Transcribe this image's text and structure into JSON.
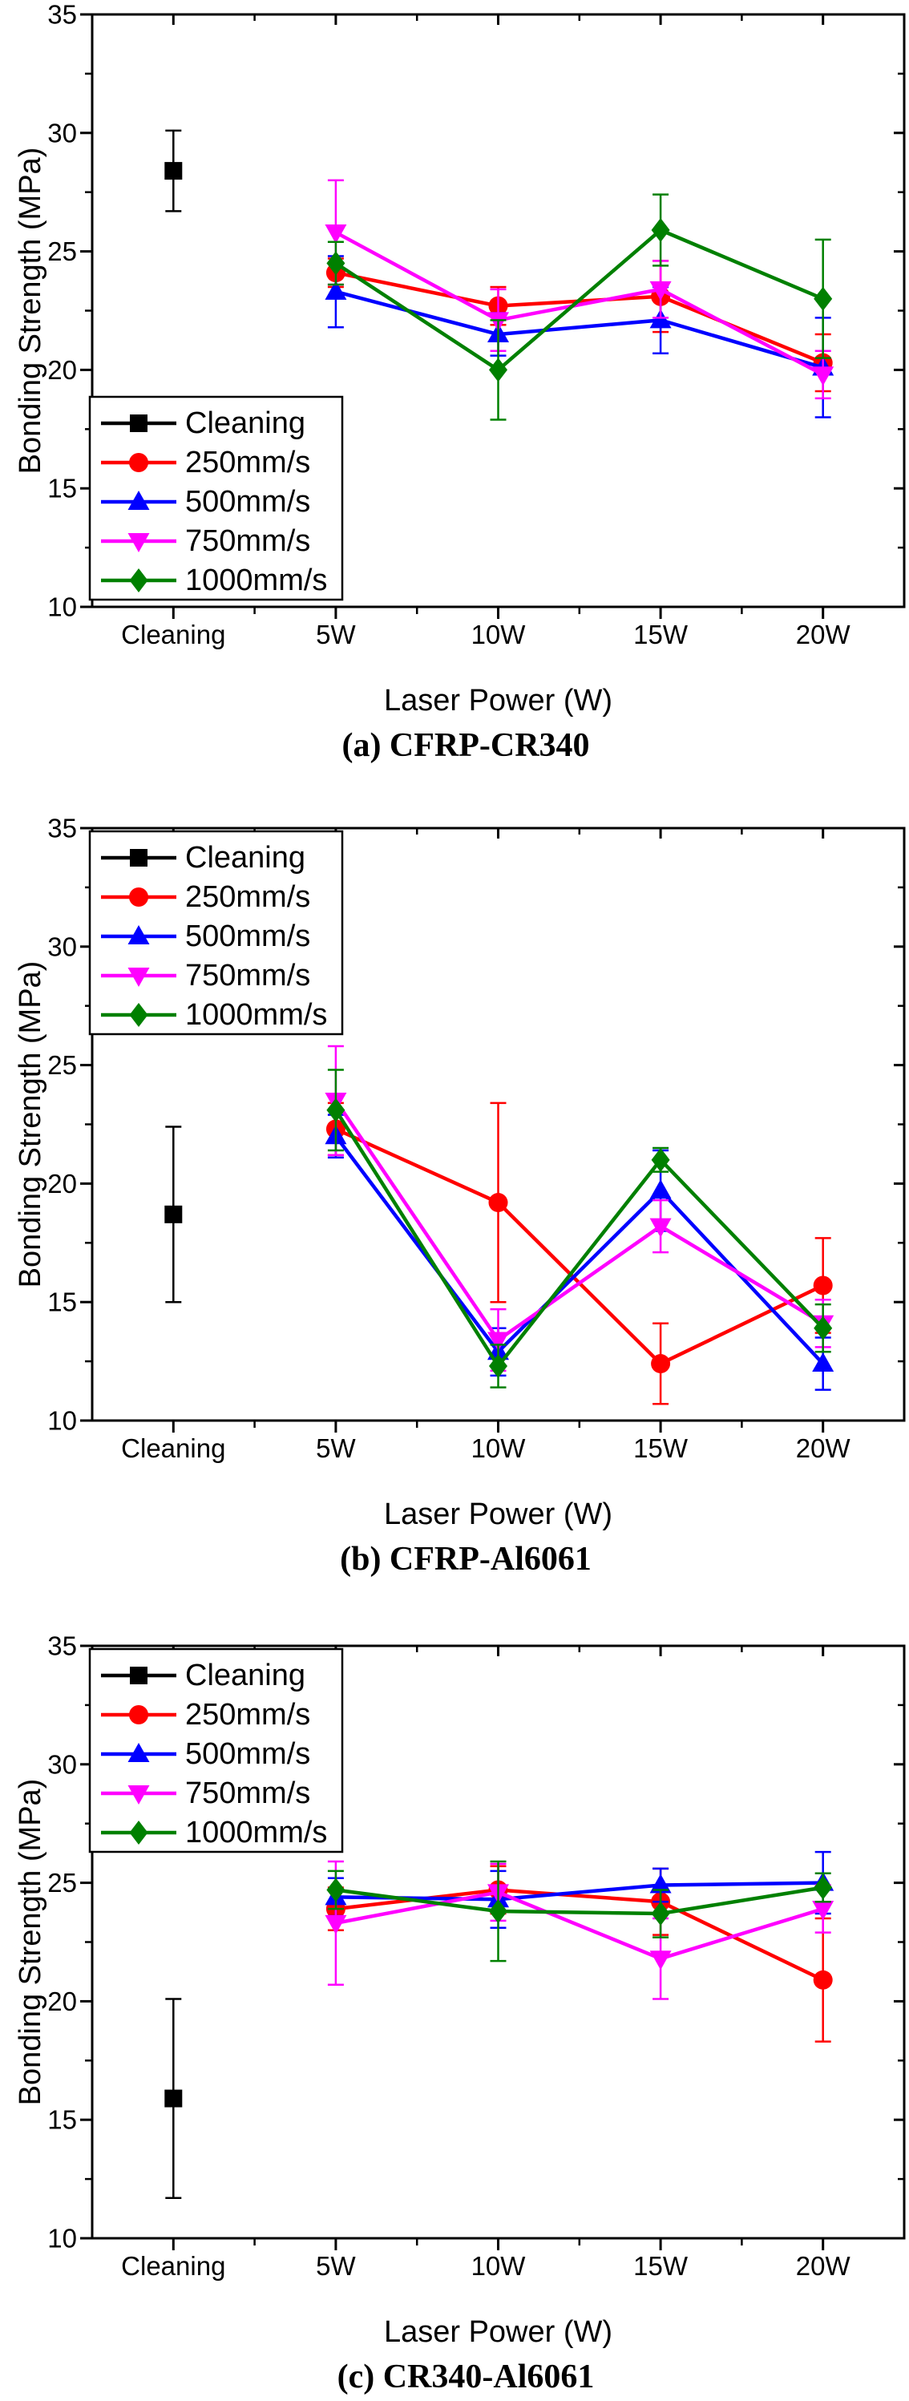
{
  "figure": {
    "background": "#ffffff",
    "axis_color": "#000000",
    "text_color": "#000000"
  },
  "chart_data": [
    {
      "id": "a",
      "type": "line",
      "caption": "(a) CFRP-CR340",
      "xlabel": "Laser Power (W)",
      "ylabel": "Bonding Strength (MPa)",
      "ylim": [
        10,
        35
      ],
      "yticks": [
        10,
        15,
        20,
        25,
        30,
        35
      ],
      "yminor_step": 2.5,
      "grid": false,
      "categories": [
        "Cleaning",
        "5W",
        "10W",
        "15W",
        "20W"
      ],
      "legend_position": "bottom-left",
      "series": [
        {
          "name": "Cleaning",
          "color": "#000000",
          "marker": "square",
          "x_indices": [
            0
          ],
          "values": [
            28.4
          ],
          "errors": [
            1.7
          ]
        },
        {
          "name": "250mm/s",
          "color": "#ff0000",
          "marker": "circle",
          "x_indices": [
            1,
            2,
            3,
            4
          ],
          "values": [
            24.1,
            22.7,
            23.1,
            20.3
          ],
          "errors": [
            0.6,
            0.8,
            1.5,
            1.2
          ]
        },
        {
          "name": "500mm/s",
          "color": "#0000ff",
          "marker": "triangle-up",
          "x_indices": [
            1,
            2,
            3,
            4
          ],
          "values": [
            23.3,
            21.5,
            22.1,
            20.1
          ],
          "errors": [
            1.5,
            0.9,
            1.4,
            2.1
          ]
        },
        {
          "name": "750mm/s",
          "color": "#ff00ff",
          "marker": "triangle-down",
          "x_indices": [
            1,
            2,
            3,
            4
          ],
          "values": [
            25.8,
            22.1,
            23.4,
            19.8
          ],
          "errors": [
            2.2,
            1.3,
            1.2,
            1.0
          ]
        },
        {
          "name": "1000mm/s",
          "color": "#008000",
          "marker": "diamond",
          "x_indices": [
            1,
            2,
            3,
            4
          ],
          "values": [
            24.5,
            20.0,
            25.9,
            23.0
          ],
          "errors": [
            0.9,
            2.1,
            1.5,
            2.5
          ]
        }
      ]
    },
    {
      "id": "b",
      "type": "line",
      "caption": "(b) CFRP-Al6061",
      "xlabel": "Laser Power (W)",
      "ylabel": "Bonding Strength (MPa)",
      "ylim": [
        10,
        35
      ],
      "yticks": [
        10,
        15,
        20,
        25,
        30,
        35
      ],
      "yminor_step": 2.5,
      "grid": false,
      "categories": [
        "Cleaning",
        "5W",
        "10W",
        "15W",
        "20W"
      ],
      "legend_position": "top-left",
      "series": [
        {
          "name": "Cleaning",
          "color": "#000000",
          "marker": "square",
          "x_indices": [
            0
          ],
          "values": [
            18.7
          ],
          "errors": [
            3.7
          ]
        },
        {
          "name": "250mm/s",
          "color": "#ff0000",
          "marker": "circle",
          "x_indices": [
            1,
            2,
            3,
            4
          ],
          "values": [
            22.3,
            19.2,
            12.4,
            15.7
          ],
          "errors": [
            1.1,
            4.2,
            1.7,
            2.0
          ]
        },
        {
          "name": "500mm/s",
          "color": "#0000ff",
          "marker": "triangle-up",
          "x_indices": [
            1,
            2,
            3,
            4
          ],
          "values": [
            22.0,
            12.9,
            19.7,
            12.4
          ],
          "errors": [
            0.9,
            1.0,
            1.7,
            1.1
          ]
        },
        {
          "name": "750mm/s",
          "color": "#ff00ff",
          "marker": "triangle-down",
          "x_indices": [
            1,
            2,
            3,
            4
          ],
          "values": [
            23.5,
            13.4,
            18.2,
            14.1
          ],
          "errors": [
            2.3,
            1.3,
            1.1,
            1.0
          ]
        },
        {
          "name": "1000mm/s",
          "color": "#008000",
          "marker": "diamond",
          "x_indices": [
            1,
            2,
            3,
            4
          ],
          "values": [
            23.1,
            12.3,
            21.0,
            13.9
          ],
          "errors": [
            1.7,
            0.9,
            0.5,
            1.0
          ]
        }
      ]
    },
    {
      "id": "c",
      "type": "line",
      "caption": "(c) CR340-Al6061",
      "xlabel": "Laser Power (W)",
      "ylabel": "Bonding Strength (MPa)",
      "ylim": [
        10,
        35
      ],
      "yticks": [
        10,
        15,
        20,
        25,
        30,
        35
      ],
      "yminor_step": 2.5,
      "grid": false,
      "categories": [
        "Cleaning",
        "5W",
        "10W",
        "15W",
        "20W"
      ],
      "legend_position": "top-left",
      "series": [
        {
          "name": "Cleaning",
          "color": "#000000",
          "marker": "square",
          "x_indices": [
            0
          ],
          "values": [
            15.9
          ],
          "errors": [
            4.2
          ]
        },
        {
          "name": "250mm/s",
          "color": "#ff0000",
          "marker": "circle",
          "x_indices": [
            1,
            2,
            3,
            4
          ],
          "values": [
            23.9,
            24.7,
            24.2,
            20.9
          ],
          "errors": [
            0.9,
            1.0,
            1.4,
            2.6
          ]
        },
        {
          "name": "500mm/s",
          "color": "#0000ff",
          "marker": "triangle-up",
          "x_indices": [
            1,
            2,
            3,
            4
          ],
          "values": [
            24.4,
            24.3,
            24.9,
            25.0
          ],
          "errors": [
            0.8,
            1.2,
            0.7,
            1.3
          ]
        },
        {
          "name": "750mm/s",
          "color": "#ff00ff",
          "marker": "triangle-down",
          "x_indices": [
            1,
            2,
            3,
            4
          ],
          "values": [
            23.3,
            24.6,
            21.8,
            23.9
          ],
          "errors": [
            2.6,
            1.2,
            1.7,
            1.0
          ]
        },
        {
          "name": "1000mm/s",
          "color": "#008000",
          "marker": "diamond",
          "x_indices": [
            1,
            2,
            3,
            4
          ],
          "values": [
            24.7,
            23.8,
            23.7,
            24.8
          ],
          "errors": [
            0.8,
            2.1,
            1.0,
            0.6
          ]
        }
      ]
    }
  ]
}
